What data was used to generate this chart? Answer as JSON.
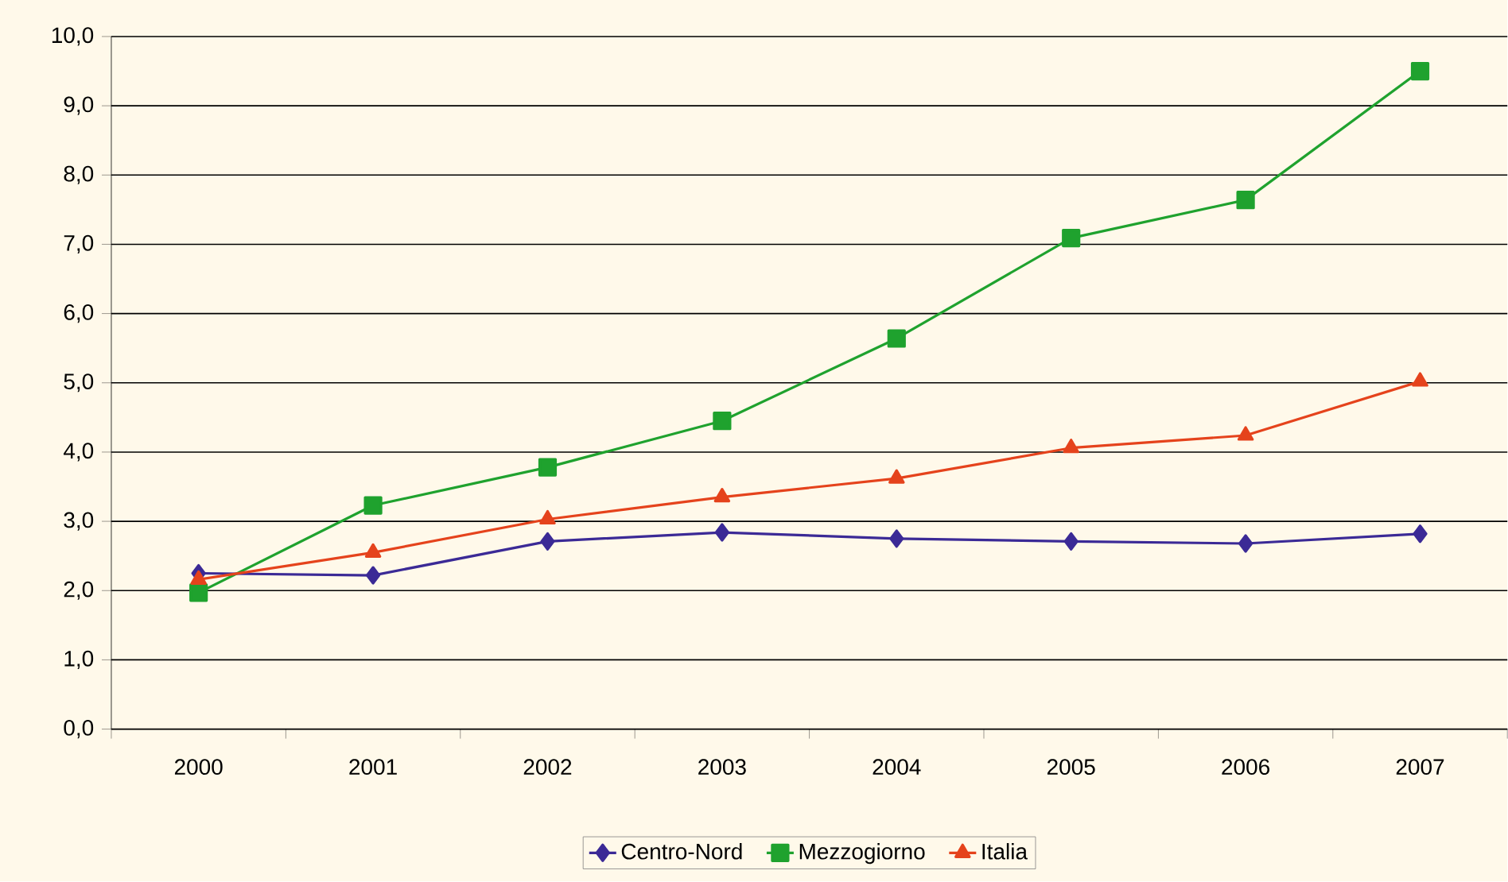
{
  "chart_data": {
    "type": "line",
    "categories": [
      "2000",
      "2001",
      "2002",
      "2003",
      "2004",
      "2005",
      "2006",
      "2007"
    ],
    "series": [
      {
        "name": "Centro-Nord",
        "color": "#3b2a96",
        "marker": "diamond",
        "values": [
          2.25,
          2.22,
          2.71,
          2.84,
          2.75,
          2.71,
          2.68,
          2.82
        ]
      },
      {
        "name": "Mezzogiorno",
        "color": "#1fa22e",
        "marker": "square",
        "values": [
          1.97,
          3.23,
          3.78,
          4.45,
          5.64,
          7.09,
          7.64,
          9.5
        ]
      },
      {
        "name": "Italia",
        "color": "#e5431c",
        "marker": "triangle",
        "values": [
          2.16,
          2.55,
          3.03,
          3.35,
          3.62,
          4.06,
          4.24,
          5.02
        ]
      }
    ],
    "ylim": [
      0,
      10
    ],
    "yticks": [
      {
        "value": 0,
        "label": "0,0"
      },
      {
        "value": 1,
        "label": "1,0"
      },
      {
        "value": 2,
        "label": "2,0"
      },
      {
        "value": 3,
        "label": "3,0"
      },
      {
        "value": 4,
        "label": "4,0"
      },
      {
        "value": 5,
        "label": "5,0"
      },
      {
        "value": 6,
        "label": "6,0"
      },
      {
        "value": 7,
        "label": "7,0"
      },
      {
        "value": 8,
        "label": "8,0"
      },
      {
        "value": 9,
        "label": "9,0"
      },
      {
        "value": 10,
        "label": "10,0"
      }
    ],
    "grid": "y",
    "legend": "bottom",
    "line_style": "solid"
  }
}
